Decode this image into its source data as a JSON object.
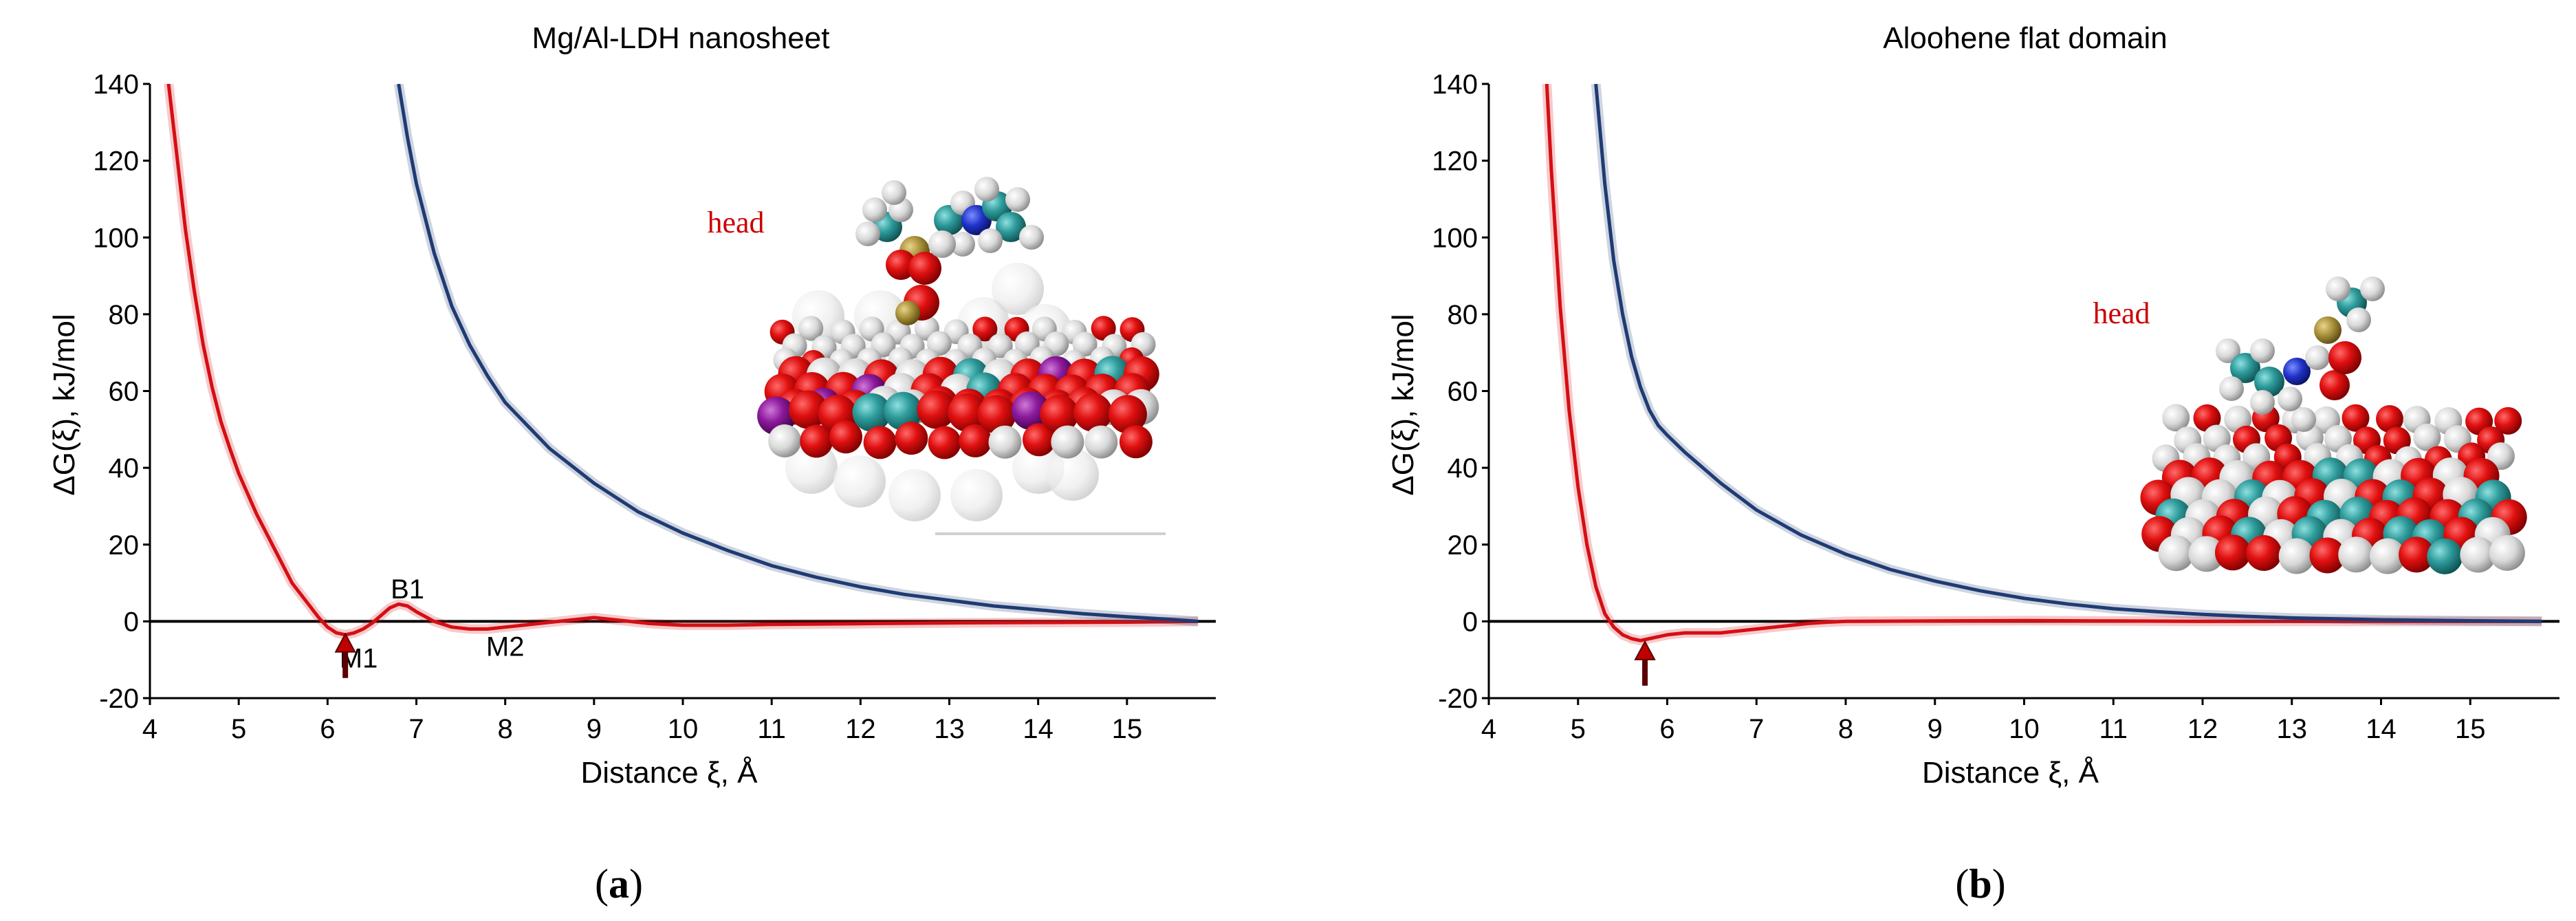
{
  "colors": {
    "red": "#d40f14",
    "blue": "#1f3b73",
    "zero_line": "#000000",
    "head_label": "#cc0000"
  },
  "chart_data": [
    {
      "type": "line",
      "title": "Mg/Al-LDH nanosheet",
      "xlabel": "Distance ξ, Å",
      "ylabel": "ΔG(ξ), kJ/mol",
      "xlim": [
        4,
        16
      ],
      "ylim": [
        -20,
        140
      ],
      "xticks": [
        4,
        5,
        6,
        7,
        8,
        9,
        10,
        11,
        12,
        13,
        14,
        15
      ],
      "yticks": [
        -20,
        0,
        20,
        40,
        60,
        80,
        100,
        120,
        140
      ],
      "grid": false,
      "series": [
        {
          "color": "red",
          "x": [
            4.2,
            4.3,
            4.4,
            4.5,
            4.6,
            4.7,
            4.8,
            4.9,
            5.0,
            5.2,
            5.4,
            5.6,
            5.8,
            5.9,
            6.0,
            6.1,
            6.2,
            6.3,
            6.4,
            6.5,
            6.6,
            6.7,
            6.8,
            6.9,
            7.0,
            7.2,
            7.4,
            7.6,
            7.8,
            8.0,
            8.2,
            8.4,
            8.6,
            8.8,
            9.0,
            9.2,
            9.4,
            9.6,
            9.8,
            10.0,
            10.5,
            11.0,
            12.0,
            13.0,
            14.0,
            15.0,
            15.8
          ],
          "y": [
            142,
            122,
            102,
            86,
            72,
            61,
            52,
            45,
            38.5,
            28,
            19,
            10,
            4,
            1,
            -1.5,
            -3,
            -3.5,
            -3,
            -2,
            -0.5,
            1.5,
            3.5,
            4.5,
            4,
            2.5,
            0,
            -1.5,
            -2,
            -2,
            -1.5,
            -1,
            -0.5,
            0,
            0.5,
            1,
            0.5,
            0,
            -0.5,
            -0.8,
            -1,
            -1,
            -0.8,
            -0.6,
            -0.4,
            -0.3,
            -0.2,
            0
          ]
        },
        {
          "color": "blue",
          "x": [
            6.8,
            6.9,
            7.0,
            7.2,
            7.4,
            7.6,
            7.8,
            8.0,
            8.5,
            9.0,
            9.5,
            10.0,
            10.5,
            11.0,
            11.5,
            12.0,
            12.5,
            13.0,
            13.5,
            14.0,
            14.5,
            15.0,
            15.5,
            15.8
          ],
          "y": [
            140,
            126,
            114,
            96,
            82,
            72,
            64,
            57,
            45,
            36,
            28.5,
            23,
            18.5,
            14.5,
            11.5,
            9,
            7,
            5.5,
            4,
            3,
            2,
            1.2,
            0.5,
            0
          ]
        }
      ],
      "annotations": [
        {
          "text": "B1",
          "x": 6.9,
          "y": 6
        },
        {
          "text": "M1",
          "x": 6.35,
          "y": -12
        },
        {
          "text": "M2",
          "x": 8.0,
          "y": -9
        }
      ],
      "arrow_at": {
        "x": 6.2,
        "y": -4
      },
      "inset_label": "head",
      "caption": [
        "(",
        "a",
        ")"
      ]
    },
    {
      "type": "line",
      "title": "Aloohene flat domain",
      "xlabel": "Distance ξ, Å",
      "ylabel": "ΔG(ξ), kJ/mol",
      "xlim": [
        4,
        16
      ],
      "ylim": [
        -20,
        140
      ],
      "xticks": [
        4,
        5,
        6,
        7,
        8,
        9,
        10,
        11,
        12,
        13,
        14,
        15
      ],
      "yticks": [
        -20,
        0,
        20,
        40,
        60,
        80,
        100,
        120,
        140
      ],
      "grid": false,
      "series": [
        {
          "color": "red",
          "x": [
            4.65,
            4.7,
            4.8,
            4.9,
            5.0,
            5.1,
            5.2,
            5.3,
            5.4,
            5.5,
            5.6,
            5.7,
            5.8,
            5.9,
            6.0,
            6.2,
            6.4,
            6.6,
            6.8,
            7.0,
            7.2,
            7.4,
            7.6,
            7.8,
            8.0,
            9.0,
            10.0,
            11.0,
            12.0,
            13.0,
            14.0,
            15.0,
            15.8
          ],
          "y": [
            140,
            118,
            82,
            55,
            35,
            20,
            9,
            2,
            -1.5,
            -3.5,
            -4.5,
            -5,
            -4.5,
            -4,
            -3.5,
            -3,
            -3,
            -3,
            -2.5,
            -2,
            -1.5,
            -1,
            -0.5,
            -0.2,
            0,
            0.1,
            0.2,
            0.1,
            0,
            0,
            0,
            0,
            0
          ]
        },
        {
          "color": "blue",
          "x": [
            5.2,
            5.3,
            5.4,
            5.5,
            5.6,
            5.7,
            5.8,
            5.9,
            6.0,
            6.2,
            6.4,
            6.6,
            6.8,
            7.0,
            7.5,
            8.0,
            8.5,
            9.0,
            9.5,
            10.0,
            10.5,
            11.0,
            11.5,
            12.0,
            12.5,
            13.0,
            14.0,
            15.0,
            15.8
          ],
          "y": [
            140,
            114,
            94,
            80,
            69,
            61,
            55,
            51,
            48.5,
            44,
            40,
            36,
            32.5,
            29,
            22.5,
            17.5,
            13.5,
            10.5,
            8,
            6,
            4.5,
            3.3,
            2.5,
            1.8,
            1.3,
            0.9,
            0.4,
            0.15,
            0
          ]
        }
      ],
      "arrow_at": {
        "x": 5.75,
        "y": -6
      },
      "inset_label": "head",
      "caption": [
        "(",
        "b",
        ")"
      ]
    }
  ]
}
